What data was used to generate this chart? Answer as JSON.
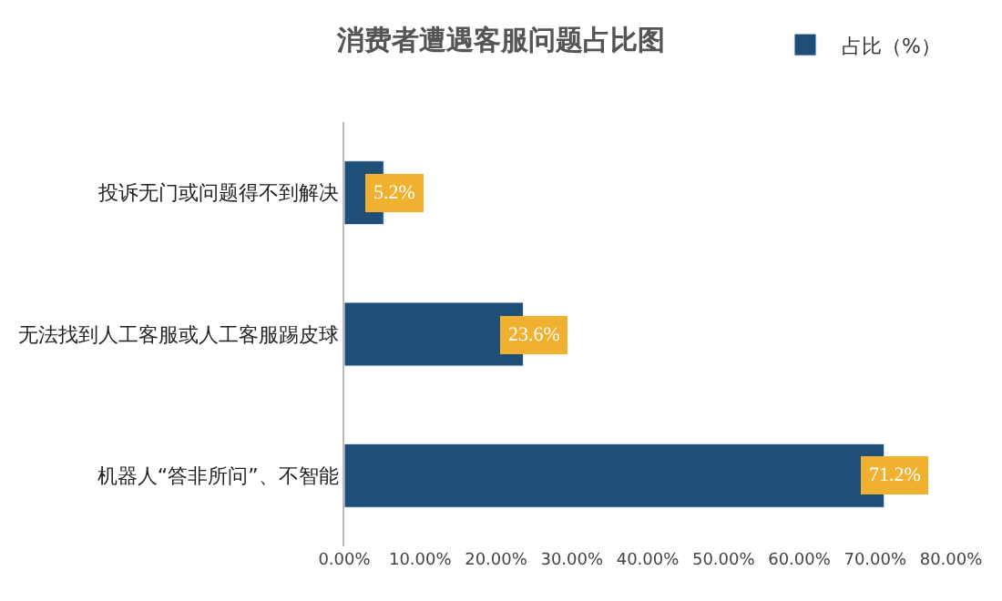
{
  "chart_data": {
    "type": "bar",
    "orientation": "horizontal",
    "title": "消费者遭遇客服问题占比图",
    "categories": [
      "投诉无门或问题得不到解决",
      "无法找到人工客服或人工客服踢皮球",
      "机器人“答非所问”、不智能"
    ],
    "series": [
      {
        "name": "占比（%）",
        "color": "#1f4e79",
        "values": [
          5.2,
          23.6,
          71.2
        ]
      }
    ],
    "value_labels": [
      "5.2%",
      "23.6%",
      "71.2%"
    ],
    "xlim": [
      0,
      80
    ],
    "xticks": [
      {
        "value": 0,
        "label": "0.00%"
      },
      {
        "value": 10,
        "label": "10.00%"
      },
      {
        "value": 20,
        "label": "20.00%"
      },
      {
        "value": 30,
        "label": "30.00%"
      },
      {
        "value": 40,
        "label": "40.00%"
      },
      {
        "value": 50,
        "label": "50.00%"
      },
      {
        "value": 60,
        "label": "60.00%"
      },
      {
        "value": 70,
        "label": "70.00%"
      },
      {
        "value": 80,
        "label": "80.00%"
      }
    ],
    "legend": "top right"
  }
}
